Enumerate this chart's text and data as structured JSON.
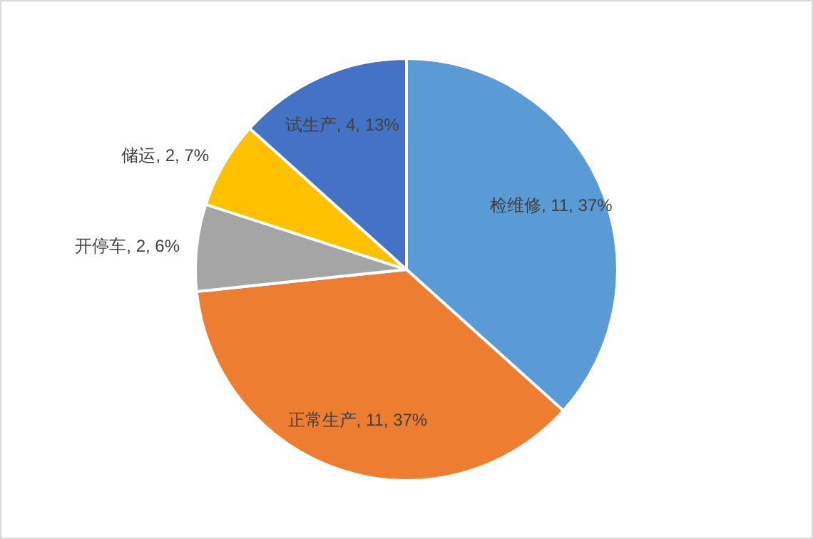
{
  "chart_data": {
    "type": "pie",
    "categories": [
      "检维修",
      "正常生产",
      "开停车",
      "储运",
      "试生产"
    ],
    "values": [
      11,
      11,
      2,
      2,
      4
    ],
    "value_labels": [
      "11, 37%",
      "11, 37%",
      "2, 6%",
      "2, 7%",
      "4, 13%"
    ],
    "colors": [
      "#5b9bd5",
      "#ed7d31",
      "#a5a5a5",
      "#ffc000",
      "#4472c4"
    ]
  }
}
